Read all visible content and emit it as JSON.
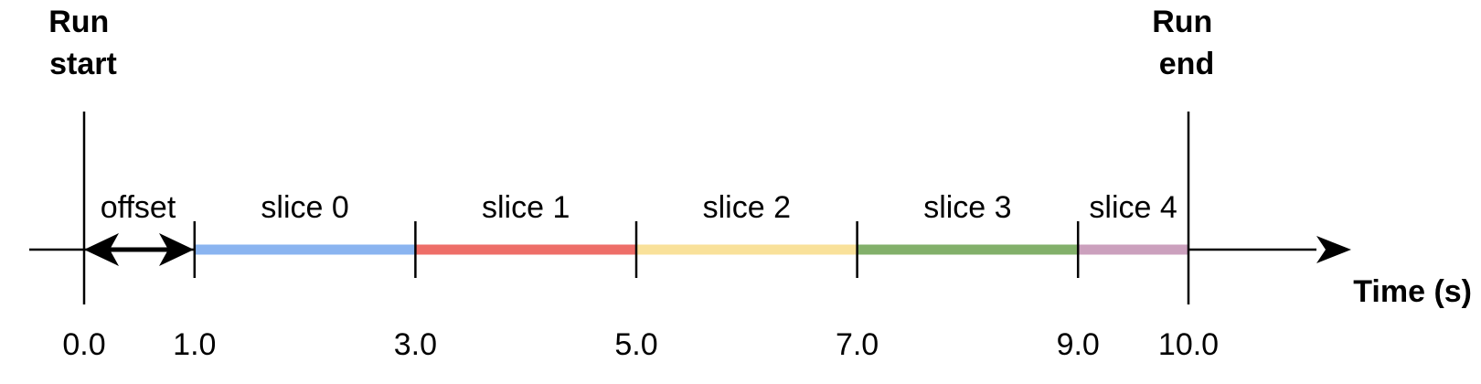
{
  "markers": {
    "run_start": [
      "Run",
      "start"
    ],
    "run_end": [
      "Run",
      "end"
    ]
  },
  "offset_label": "offset",
  "axis_label": "Time (s)",
  "timeline": {
    "start": 0.0,
    "end": 10.0,
    "offset": 1.0
  },
  "ticks": [
    "0.0",
    "1.0",
    "3.0",
    "5.0",
    "7.0",
    "9.0",
    "10.0"
  ],
  "slices": [
    {
      "label": "slice 0",
      "start": 1.0,
      "end": 3.0,
      "color": "#8ab4f0"
    },
    {
      "label": "slice 1",
      "start": 3.0,
      "end": 5.0,
      "color": "#ee6e68"
    },
    {
      "label": "slice 2",
      "start": 5.0,
      "end": 7.0,
      "color": "#f9e19a"
    },
    {
      "label": "slice 3",
      "start": 7.0,
      "end": 9.0,
      "color": "#82b06a"
    },
    {
      "label": "slice 4",
      "start": 9.0,
      "end": 10.0,
      "color": "#cba0bd"
    }
  ]
}
